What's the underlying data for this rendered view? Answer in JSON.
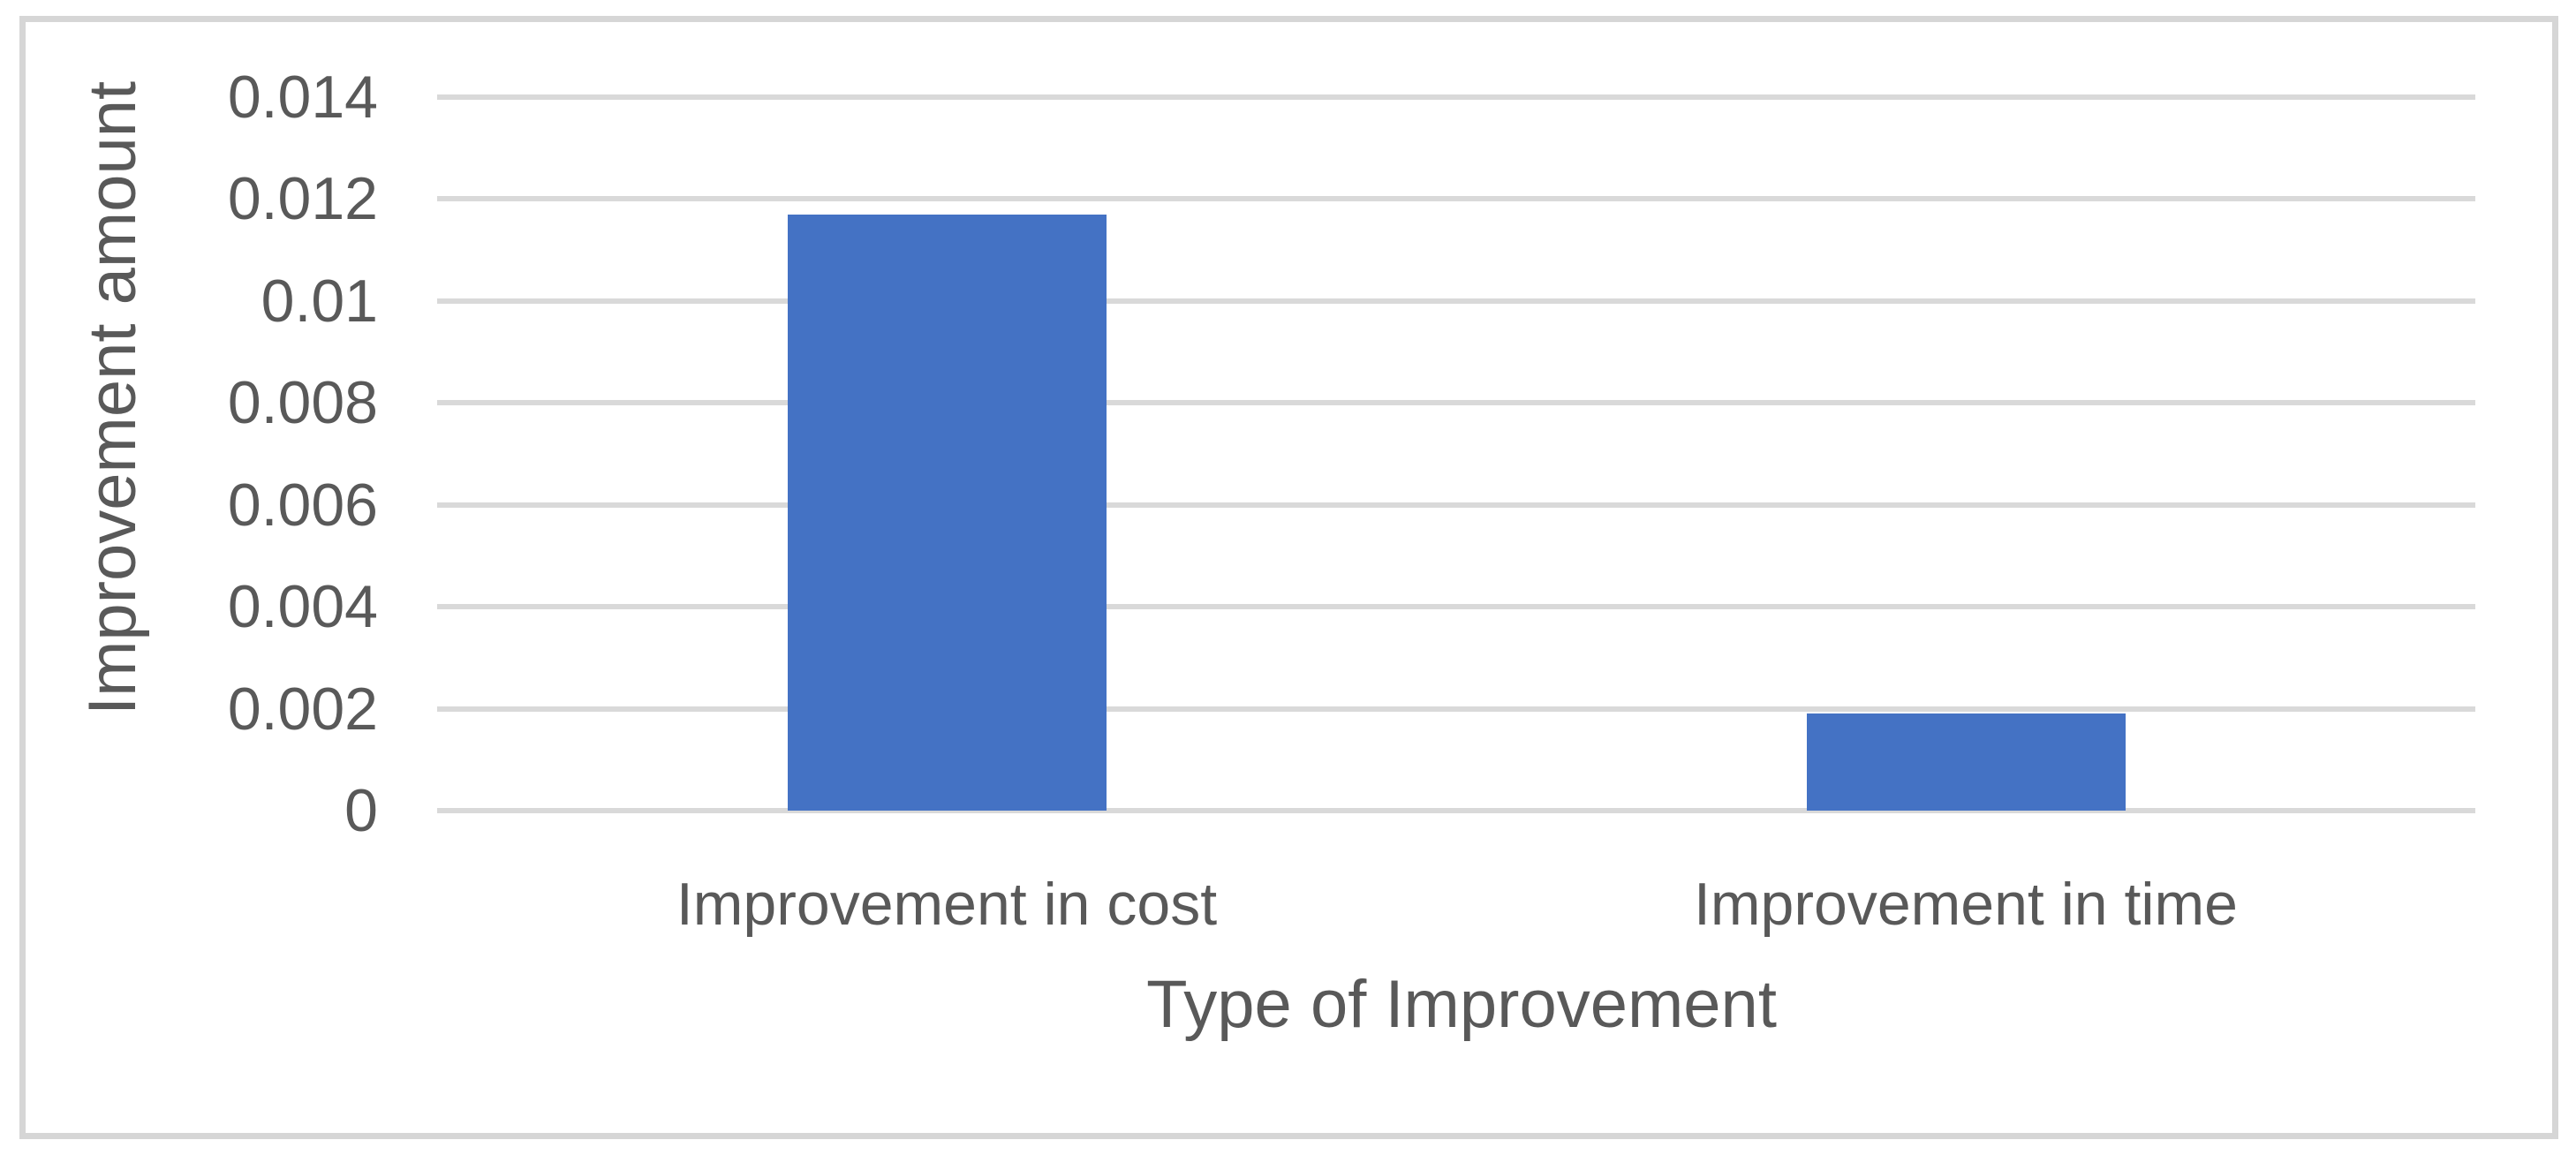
{
  "chart_data": {
    "type": "bar",
    "title": "",
    "categories": [
      "Improvement in cost",
      "Improvement in time"
    ],
    "values": [
      0.0117,
      0.0019
    ],
    "xlabel": "Type of Improvement",
    "ylabel": "Improvement amount",
    "ylim": [
      0,
      0.014
    ],
    "ytick_interval": 0.002,
    "ytick_labels": [
      "0",
      "0.002",
      "0.004",
      "0.006",
      "0.008",
      "0.01",
      "0.012",
      "0.014"
    ],
    "grid": true,
    "legend": false,
    "colors": {
      "bar": "#4472C4",
      "gridline": "#D9D9D9",
      "border": "#D6D6D6",
      "text": "#595959",
      "background": "#FFFFFF"
    }
  }
}
